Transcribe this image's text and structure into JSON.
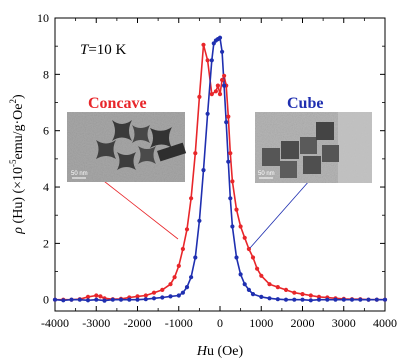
{
  "chart_data": {
    "type": "line",
    "xlabel_pre": "H",
    "xlabel_mid": "u",
    "xlabel_post": " (Oe)",
    "ylabel_rho": "ρ",
    "ylabel_paren": " (Hu)",
    "ylabel_units": " (×10",
    "ylabel_exp": "-5",
    "ylabel_tail": "emu/g·Oe",
    "ylabel_sq": "2",
    "ylabel_close": ")",
    "annotation_T": "T",
    "annotation_rest": "=10 K",
    "xlim": [
      -4000,
      4000
    ],
    "ylim": [
      -0.4,
      10
    ],
    "xticks": [
      -4000,
      -3000,
      -2000,
      -1000,
      0,
      1000,
      2000,
      3000,
      4000
    ],
    "yticks": [
      0,
      2,
      4,
      6,
      8,
      10
    ],
    "series": [
      {
        "name": "Concave",
        "color": "#e8262a",
        "points": [
          [
            -4000,
            0.0
          ],
          [
            -3800,
            0.0
          ],
          [
            -3600,
            0.0
          ],
          [
            -3400,
            0.02
          ],
          [
            -3200,
            0.1
          ],
          [
            -3000,
            0.15
          ],
          [
            -2900,
            0.12
          ],
          [
            -2800,
            0.05
          ],
          [
            -2600,
            0.02
          ],
          [
            -2400,
            0.03
          ],
          [
            -2200,
            0.08
          ],
          [
            -2000,
            0.12
          ],
          [
            -1800,
            0.15
          ],
          [
            -1600,
            0.25
          ],
          [
            -1400,
            0.35
          ],
          [
            -1200,
            0.55
          ],
          [
            -1100,
            0.8
          ],
          [
            -1000,
            1.2
          ],
          [
            -900,
            1.8
          ],
          [
            -800,
            2.5
          ],
          [
            -700,
            3.6
          ],
          [
            -600,
            5.2
          ],
          [
            -500,
            7.2
          ],
          [
            -400,
            9.05
          ],
          [
            -300,
            8.5
          ],
          [
            -200,
            7.3
          ],
          [
            -100,
            7.4
          ],
          [
            -50,
            7.6
          ],
          [
            0,
            7.3
          ],
          [
            50,
            7.8
          ],
          [
            100,
            7.95
          ],
          [
            150,
            7.6
          ],
          [
            200,
            6.5
          ],
          [
            250,
            5.2
          ],
          [
            300,
            4.2
          ],
          [
            400,
            3.2
          ],
          [
            500,
            2.6
          ],
          [
            600,
            2.2
          ],
          [
            700,
            1.8
          ],
          [
            800,
            1.5
          ],
          [
            900,
            1.1
          ],
          [
            1000,
            0.85
          ],
          [
            1200,
            0.55
          ],
          [
            1400,
            0.45
          ],
          [
            1600,
            0.35
          ],
          [
            1800,
            0.25
          ],
          [
            2000,
            0.2
          ],
          [
            2200,
            0.15
          ],
          [
            2400,
            0.1
          ],
          [
            2600,
            0.08
          ],
          [
            2800,
            0.05
          ],
          [
            3000,
            0.03
          ],
          [
            3200,
            0.02
          ],
          [
            3400,
            0.02
          ],
          [
            3600,
            0.0
          ],
          [
            3800,
            0.0
          ],
          [
            4000,
            0.0
          ]
        ]
      },
      {
        "name": "Cube",
        "color": "#1f2fb0",
        "points": [
          [
            -4000,
            0.0
          ],
          [
            -3800,
            -0.02
          ],
          [
            -3600,
            0.0
          ],
          [
            -3400,
            0.0
          ],
          [
            -3200,
            -0.02
          ],
          [
            -3000,
            0.0
          ],
          [
            -2800,
            -0.03
          ],
          [
            -2600,
            0.0
          ],
          [
            -2400,
            0.0
          ],
          [
            -2200,
            0.0
          ],
          [
            -2000,
            0.0
          ],
          [
            -1800,
            0.02
          ],
          [
            -1600,
            0.05
          ],
          [
            -1400,
            0.08
          ],
          [
            -1200,
            0.12
          ],
          [
            -1000,
            0.15
          ],
          [
            -900,
            0.25
          ],
          [
            -800,
            0.45
          ],
          [
            -700,
            0.8
          ],
          [
            -600,
            1.5
          ],
          [
            -500,
            2.8
          ],
          [
            -400,
            4.6
          ],
          [
            -300,
            6.6
          ],
          [
            -200,
            8.5
          ],
          [
            -150,
            9.1
          ],
          [
            -100,
            9.2
          ],
          [
            -50,
            9.25
          ],
          [
            0,
            9.3
          ],
          [
            50,
            8.8
          ],
          [
            100,
            7.6
          ],
          [
            150,
            6.3
          ],
          [
            200,
            4.9
          ],
          [
            250,
            3.6
          ],
          [
            300,
            2.6
          ],
          [
            400,
            1.5
          ],
          [
            500,
            0.9
          ],
          [
            600,
            0.55
          ],
          [
            700,
            0.35
          ],
          [
            800,
            0.2
          ],
          [
            1000,
            0.1
          ],
          [
            1200,
            0.05
          ],
          [
            1400,
            0.02
          ],
          [
            1600,
            0.0
          ],
          [
            1800,
            0.0
          ],
          [
            2000,
            0.0
          ],
          [
            2200,
            -0.02
          ],
          [
            2400,
            0.0
          ],
          [
            2600,
            0.0
          ],
          [
            2800,
            0.0
          ],
          [
            3000,
            0.0
          ],
          [
            3200,
            0.0
          ],
          [
            3400,
            0.0
          ],
          [
            3600,
            0.0
          ],
          [
            3800,
            0.0
          ],
          [
            4000,
            0.0
          ]
        ]
      }
    ],
    "insets": [
      {
        "name": "Concave",
        "scale_bar": "50 nm"
      },
      {
        "name": "Cube",
        "scale_bar": "50 nm"
      }
    ]
  }
}
